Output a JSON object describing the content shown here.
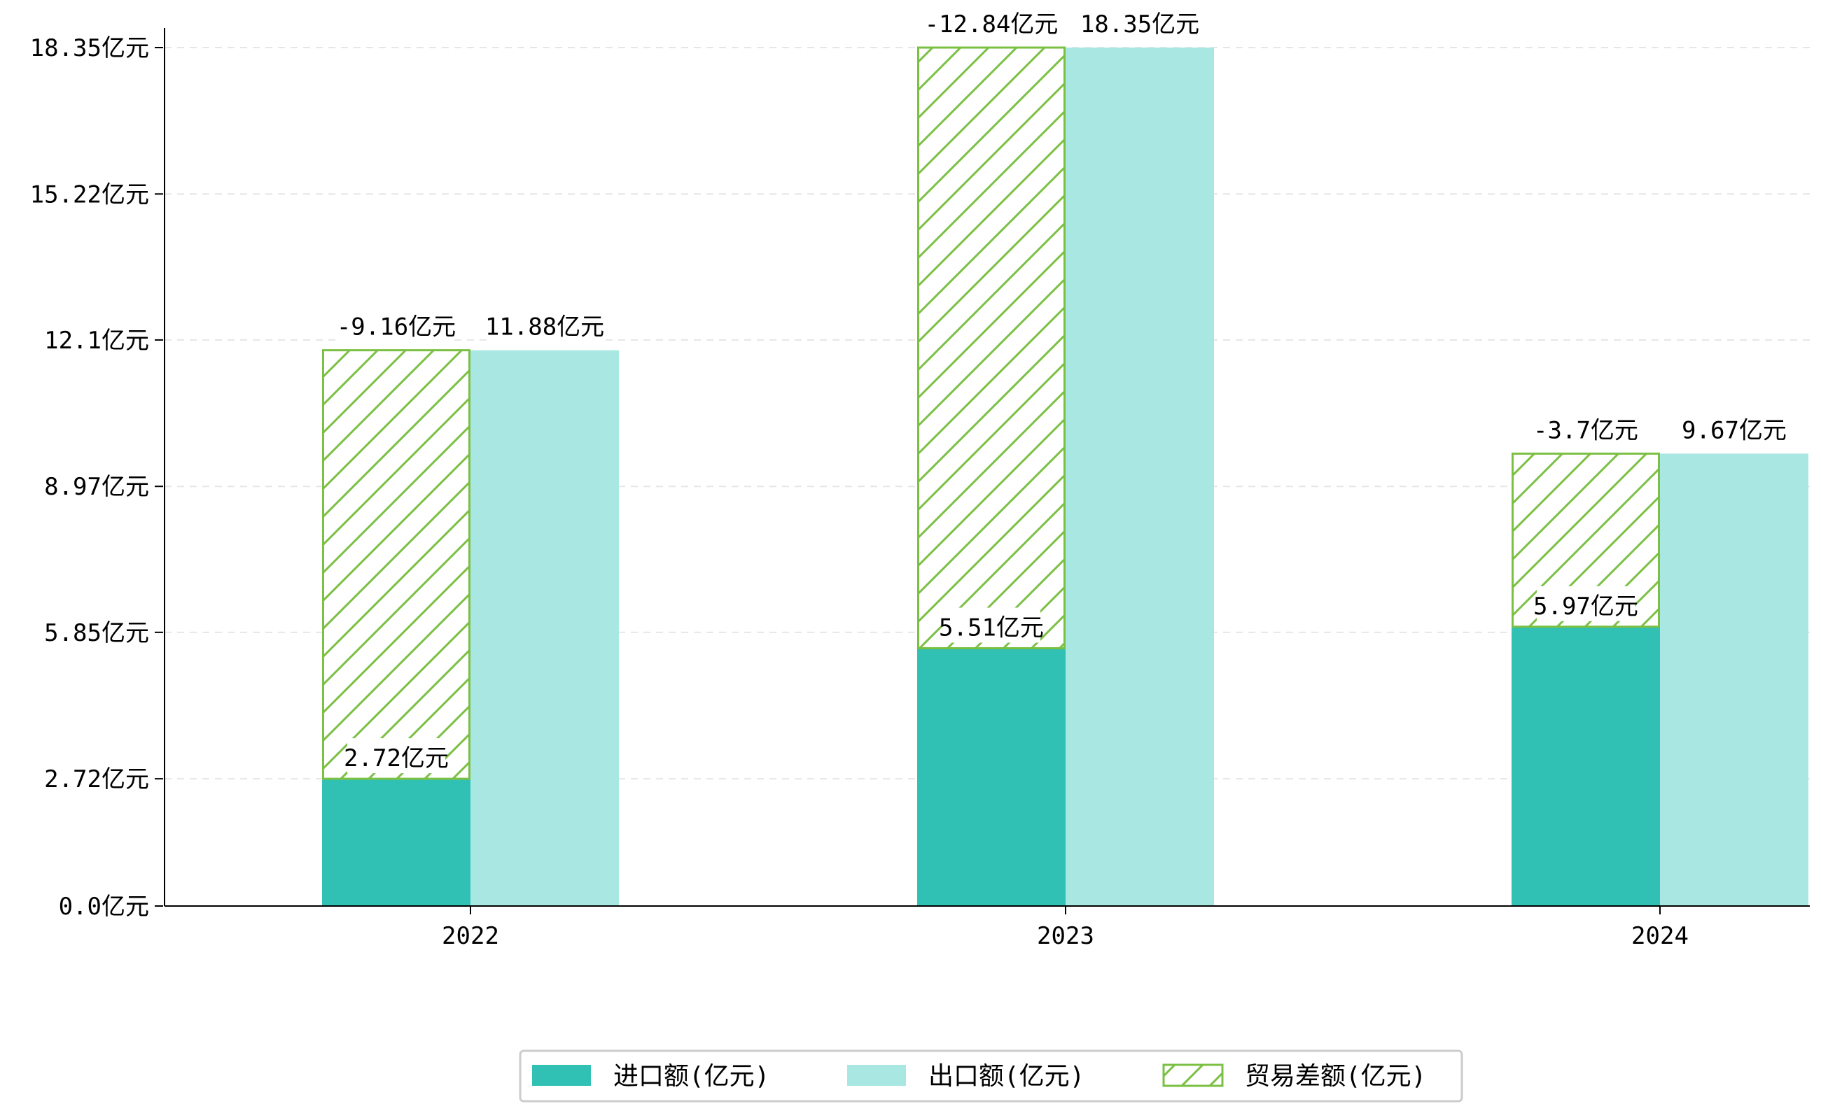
{
  "chart_data": {
    "type": "bar",
    "categories": [
      "2022",
      "2023",
      "2024"
    ],
    "series": [
      {
        "name": "进口额(亿元)",
        "values": [
          2.72,
          5.51,
          5.97
        ],
        "labels": [
          "2.72亿元",
          "5.51亿元",
          "5.97亿元"
        ],
        "color": "#30c0b4"
      },
      {
        "name": "出口额(亿元)",
        "values": [
          11.88,
          18.35,
          9.67
        ],
        "labels": [
          "11.88亿元",
          "18.35亿元",
          "9.67亿元"
        ],
        "color": "#a9e7e2"
      },
      {
        "name": "贸易差额(亿元)",
        "values": [
          -9.16,
          -12.84,
          -3.7
        ],
        "labels": [
          "-9.16亿元",
          "-12.84亿元",
          "-3.7亿元"
        ],
        "color": "#7bc043",
        "stacked_on": "进口额(亿元)",
        "hatch": true
      }
    ],
    "yticks": [
      0.0,
      2.72,
      5.85,
      8.97,
      12.1,
      15.22,
      18.35
    ],
    "ytick_labels": [
      "0.0亿元",
      "2.72亿元",
      "5.85亿元",
      "8.97亿元",
      "12.1亿元",
      "15.22亿元",
      "18.35亿元"
    ],
    "ylim": [
      0,
      18.35
    ],
    "grid": "horizontal-dashed",
    "legend_position": "bottom-center",
    "title": "",
    "xlabel": "",
    "ylabel": ""
  }
}
